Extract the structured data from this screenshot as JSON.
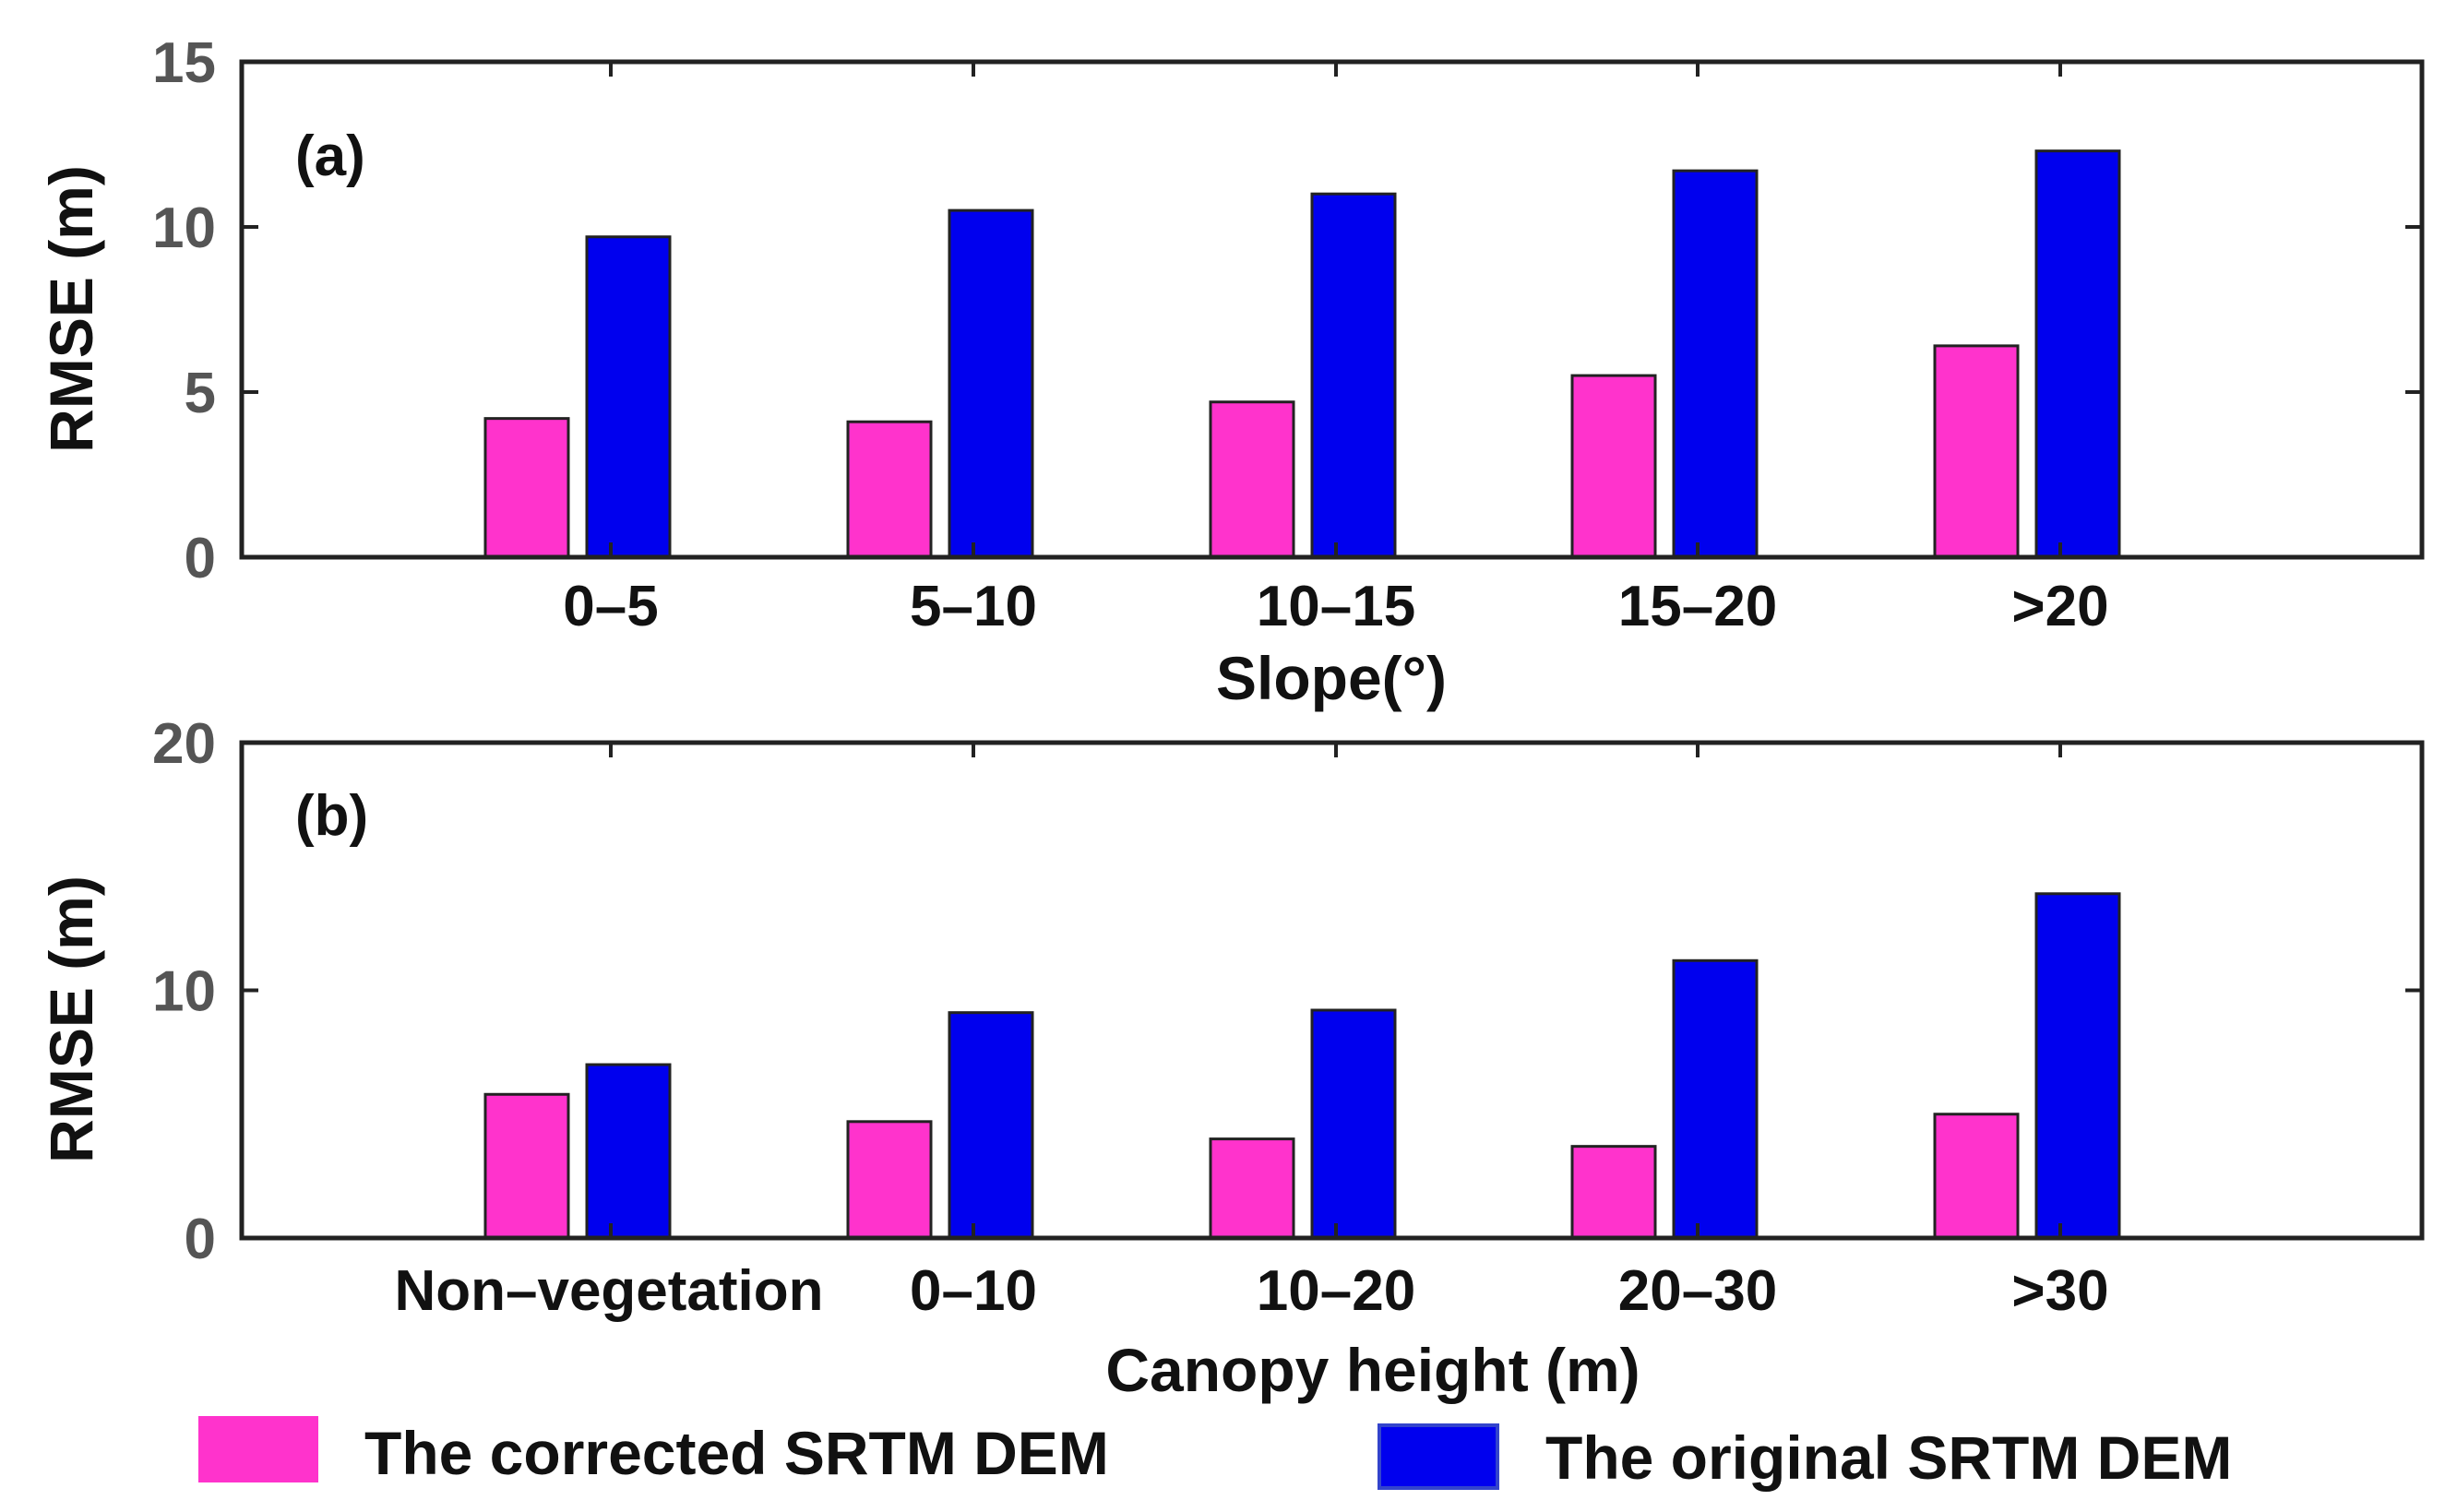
{
  "colors": {
    "corrected": "#ff33cc",
    "original": "#0000ee"
  },
  "legend": {
    "corrected_label": "The corrected SRTM DEM",
    "original_label": "The original SRTM DEM"
  },
  "chart_data": [
    {
      "type": "bar",
      "panel_label": "(a)",
      "title": "",
      "xlabel": "Slope(°)",
      "ylabel": "RMSE (m)",
      "ylim": [
        0,
        15
      ],
      "yticks": [
        "0",
        "5",
        "10",
        "15"
      ],
      "yticks_values": [
        0,
        5,
        10,
        15
      ],
      "categories": [
        "0–5",
        "5–10",
        "10–15",
        "15–20",
        ">20"
      ],
      "series": [
        {
          "name": "The corrected SRTM DEM",
          "values": [
            4.2,
            4.1,
            4.7,
            5.5,
            6.4
          ]
        },
        {
          "name": "The original SRTM DEM",
          "values": [
            9.7,
            10.5,
            11.0,
            11.7,
            12.3
          ]
        }
      ]
    },
    {
      "type": "bar",
      "panel_label": "(b)",
      "title": "",
      "xlabel": "Canopy height (m)",
      "ylabel": "RMSE (m)",
      "ylim": [
        0,
        20
      ],
      "yticks": [
        "0",
        "10",
        "20"
      ],
      "yticks_values": [
        0,
        10,
        20
      ],
      "categories": [
        "Non–vegetation",
        "0–10",
        "10–20",
        "20–30",
        ">30"
      ],
      "series": [
        {
          "name": "The corrected SRTM DEM",
          "values": [
            5.8,
            4.7,
            4.0,
            3.7,
            5.0
          ]
        },
        {
          "name": "The original SRTM DEM",
          "values": [
            7.0,
            9.1,
            9.2,
            11.2,
            13.9
          ]
        }
      ]
    }
  ]
}
